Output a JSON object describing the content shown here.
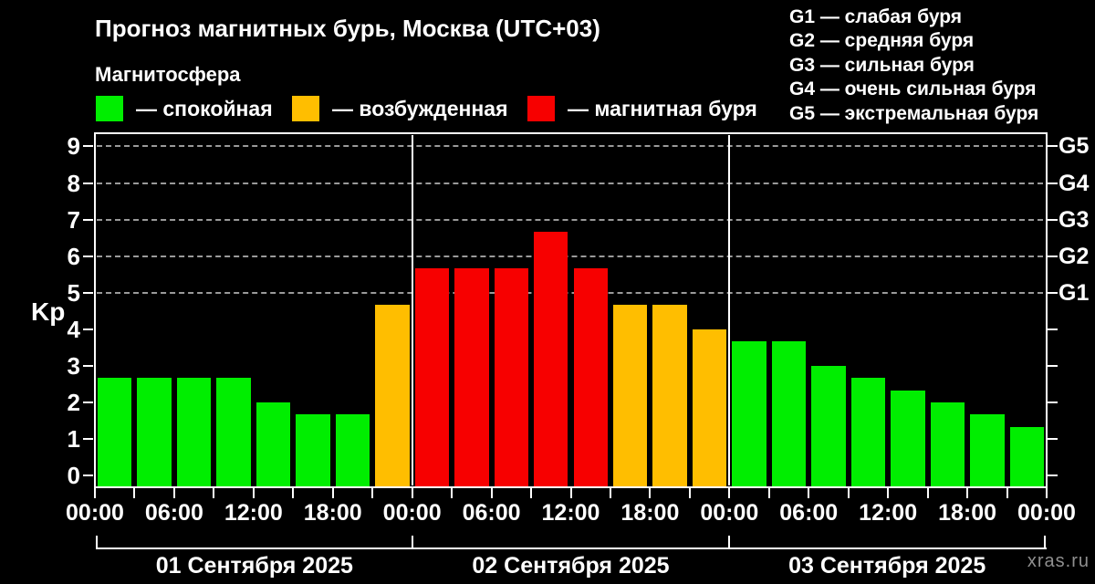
{
  "title": "Прогноз магнитных бурь, Москва (UTC+03)",
  "subtitle": "Магнитосфера",
  "legend": {
    "items": [
      {
        "name": "quiet",
        "label": "— спокойная",
        "color": "#00ee00"
      },
      {
        "name": "excited",
        "label": "— возбужденная",
        "color": "#ffbe00"
      },
      {
        "name": "storm",
        "label": "— магнитная буря",
        "color": "#f70000"
      }
    ]
  },
  "g_legend": [
    "G1 — слабая буря",
    "G2 — средняя буря",
    "G3 — сильная буря",
    "G4 — очень сильная буря",
    "G5 — экстремальная буря"
  ],
  "watermark": "xras.ru",
  "chart_data": {
    "type": "bar",
    "title": "Прогноз магнитных бурь, Москва (UTC+03)",
    "ylabel": "Kp",
    "ylim": [
      -0.33,
      9.35
    ],
    "y_ticks": [
      0,
      1,
      2,
      3,
      4,
      5,
      6,
      7,
      8,
      9
    ],
    "grid": "dashed horizontal gridlines at Kp 5,6,7,8,9",
    "legend_position": "top",
    "bar_interval_hours": 3,
    "x_tick_interval_hours": 3,
    "x_label_interval_hours": 6,
    "x_labels": [
      "00:00",
      "06:00",
      "12:00",
      "18:00",
      "00:00",
      "06:00",
      "12:00",
      "18:00",
      "00:00",
      "06:00",
      "12:00",
      "18:00",
      "00:00"
    ],
    "right_axis": [
      {
        "kp": 5,
        "label": "G1"
      },
      {
        "kp": 6,
        "label": "G2"
      },
      {
        "kp": 7,
        "label": "G3"
      },
      {
        "kp": 8,
        "label": "G4"
      },
      {
        "kp": 9,
        "label": "G5"
      }
    ],
    "days": [
      {
        "label": "01 Сентября 2025",
        "values": [
          2.67,
          2.67,
          2.67,
          2.67,
          2.0,
          1.67,
          1.67,
          4.67
        ]
      },
      {
        "label": "02 Сентября 2025",
        "values": [
          5.67,
          5.67,
          5.67,
          6.67,
          5.67,
          4.67,
          4.67,
          4.0
        ]
      },
      {
        "label": "03 Сентября 2025",
        "values": [
          3.67,
          3.67,
          3.0,
          2.67,
          2.33,
          2.0,
          1.67,
          1.33
        ]
      }
    ],
    "color_thresholds": {
      "excited_at_or_above": 4,
      "storm_at_or_above": 5
    },
    "bar_colors": {
      "quiet": "#00ee00",
      "excited": "#ffbe00",
      "storm": "#f70000"
    },
    "gridline_color": "#9a9a9a",
    "axis_color": "#ffffff"
  }
}
